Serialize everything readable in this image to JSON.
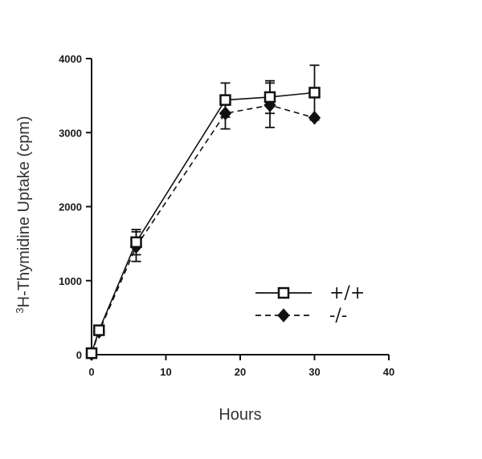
{
  "chart_data": {
    "type": "line",
    "title": "",
    "xlabel": "Hours",
    "ylabel_prefix": "3",
    "ylabel": "H-Thymidine Uptake (cpm)",
    "xlim": [
      0,
      40
    ],
    "ylim": [
      0,
      4000
    ],
    "x_ticks": [
      0,
      10,
      20,
      30,
      40
    ],
    "y_ticks": [
      0,
      1000,
      2000,
      3000,
      4000
    ],
    "grid": false,
    "legend_position": "bottom-right",
    "series": [
      {
        "name": "+/+",
        "marker": "open-square",
        "line_style": "solid",
        "color": "#111111",
        "points": [
          {
            "x": 0,
            "y": 20,
            "err": 0
          },
          {
            "x": 1,
            "y": 330,
            "err": 0
          },
          {
            "x": 6,
            "y": 1520,
            "err": 170
          },
          {
            "x": 18,
            "y": 3440,
            "err": 230
          },
          {
            "x": 24,
            "y": 3480,
            "err": 220
          },
          {
            "x": 30,
            "y": 3540,
            "err": 370
          }
        ]
      },
      {
        "name": "-/-",
        "marker": "filled-diamond",
        "line_style": "dashed",
        "color": "#111111",
        "points": [
          {
            "x": 0,
            "y": 10,
            "err": 0
          },
          {
            "x": 1,
            "y": 310,
            "err": 0
          },
          {
            "x": 6,
            "y": 1460,
            "err": 200
          },
          {
            "x": 18,
            "y": 3260,
            "err": 210
          },
          {
            "x": 24,
            "y": 3370,
            "err": 300
          },
          {
            "x": 30,
            "y": 3200,
            "err": 0
          }
        ]
      }
    ]
  }
}
